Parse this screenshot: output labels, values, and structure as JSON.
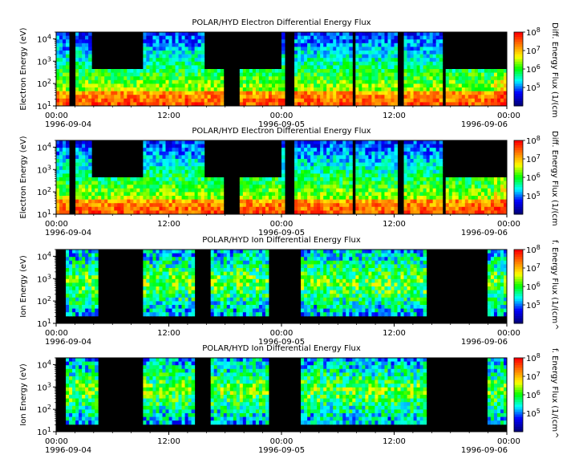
{
  "chart_data": [
    {
      "type": "heatmap",
      "title": "POLAR/HYD  Electron Differential Energy Flux",
      "ylabel": "Electron Energy (eV)",
      "colorbar_label": "Diff. Energy Flux (1/(cm",
      "yscale": "log",
      "ylim": [
        10,
        20000
      ],
      "y_ticks": [
        {
          "exp": "1"
        },
        {
          "exp": "2"
        },
        {
          "exp": "3"
        },
        {
          "exp": "4"
        }
      ],
      "x_ticks": [
        {
          "time": "00:00",
          "date": "1996-09-04"
        },
        {
          "time": "12:00",
          "date": ""
        },
        {
          "time": "00:00",
          "date": "1996-09-05"
        },
        {
          "time": "12:00",
          "date": ""
        },
        {
          "time": "00:00",
          "date": "1996-09-06"
        }
      ],
      "x_range": [
        "1996-09-04 00:00",
        "1996-09-06 00:00"
      ],
      "colorbar": {
        "scale": "log",
        "range": [
          10000,
          100000000
        ],
        "ticks": [
          {
            "exp": "5"
          },
          {
            "exp": "6"
          },
          {
            "exp": "7"
          },
          {
            "exp": "8"
          }
        ]
      },
      "colormap": [
        "#000080",
        "#0000ff",
        "#00ffff",
        "#00ff00",
        "#ffff00",
        "#ff8000",
        "#ff0000"
      ],
      "background": "#000000"
    },
    {
      "type": "heatmap",
      "title": "POLAR/HYD  Electron Differential Energy Flux",
      "ylabel": "Electron Energy (eV)",
      "colorbar_label": "Diff. Energy Flux (1/(cm",
      "yscale": "log",
      "ylim": [
        10,
        20000
      ],
      "y_ticks": [
        {
          "exp": "1"
        },
        {
          "exp": "2"
        },
        {
          "exp": "3"
        },
        {
          "exp": "4"
        }
      ],
      "x_ticks": [
        {
          "time": "00:00",
          "date": "1996-09-04"
        },
        {
          "time": "12:00",
          "date": ""
        },
        {
          "time": "00:00",
          "date": "1996-09-05"
        },
        {
          "time": "12:00",
          "date": ""
        },
        {
          "time": "00:00",
          "date": "1996-09-06"
        }
      ],
      "x_range": [
        "1996-09-04 00:00",
        "1996-09-06 00:00"
      ],
      "colorbar": {
        "scale": "log",
        "range": [
          10000,
          100000000
        ],
        "ticks": [
          {
            "exp": "5"
          },
          {
            "exp": "6"
          },
          {
            "exp": "7"
          },
          {
            "exp": "8"
          }
        ]
      },
      "colormap": [
        "#000080",
        "#0000ff",
        "#00ffff",
        "#00ff00",
        "#ffff00",
        "#ff8000",
        "#ff0000"
      ],
      "background": "#000000"
    },
    {
      "type": "heatmap",
      "title": "POLAR/HYD  Ion Differential Energy Flux",
      "ylabel": "Ion Energy (eV)",
      "colorbar_label": "f. Energy Flux (1/(cm^",
      "yscale": "log",
      "ylim": [
        10,
        20000
      ],
      "y_ticks": [
        {
          "exp": "1"
        },
        {
          "exp": "2"
        },
        {
          "exp": "3"
        },
        {
          "exp": "4"
        }
      ],
      "x_ticks": [
        {
          "time": "00:00",
          "date": "1996-09-04"
        },
        {
          "time": "12:00",
          "date": ""
        },
        {
          "time": "00:00",
          "date": "1996-09-05"
        },
        {
          "time": "12:00",
          "date": ""
        },
        {
          "time": "00:00",
          "date": "1996-09-06"
        }
      ],
      "x_range": [
        "1996-09-04 00:00",
        "1996-09-06 00:00"
      ],
      "colorbar": {
        "scale": "log",
        "range": [
          10000,
          100000000
        ],
        "ticks": [
          {
            "exp": "5"
          },
          {
            "exp": "6"
          },
          {
            "exp": "7"
          },
          {
            "exp": "8"
          }
        ]
      },
      "colormap": [
        "#000080",
        "#0000ff",
        "#00ffff",
        "#00ff00",
        "#ffff00",
        "#ff8000",
        "#ff0000"
      ],
      "background": "#000000"
    },
    {
      "type": "heatmap",
      "title": "POLAR/HYD  Ion Differential Energy Flux",
      "ylabel": "Ion Energy (eV)",
      "colorbar_label": "f. Energy Flux (1/(cm^",
      "yscale": "log",
      "ylim": [
        10,
        20000
      ],
      "y_ticks": [
        {
          "exp": "1"
        },
        {
          "exp": "2"
        },
        {
          "exp": "3"
        },
        {
          "exp": "4"
        }
      ],
      "x_ticks": [
        {
          "time": "00:00",
          "date": "1996-09-04"
        },
        {
          "time": "12:00",
          "date": ""
        },
        {
          "time": "00:00",
          "date": "1996-09-05"
        },
        {
          "time": "12:00",
          "date": ""
        },
        {
          "time": "00:00",
          "date": "1996-09-06"
        }
      ],
      "x_range": [
        "1996-09-04 00:00",
        "1996-09-06 00:00"
      ],
      "colorbar": {
        "scale": "log",
        "range": [
          10000,
          100000000
        ],
        "ticks": [
          {
            "exp": "5"
          },
          {
            "exp": "6"
          },
          {
            "exp": "7"
          },
          {
            "exp": "8"
          }
        ]
      },
      "colormap": [
        "#000080",
        "#0000ff",
        "#00ffff",
        "#00ff00",
        "#ffff00",
        "#ff8000",
        "#ff0000"
      ],
      "background": "#000000"
    }
  ]
}
